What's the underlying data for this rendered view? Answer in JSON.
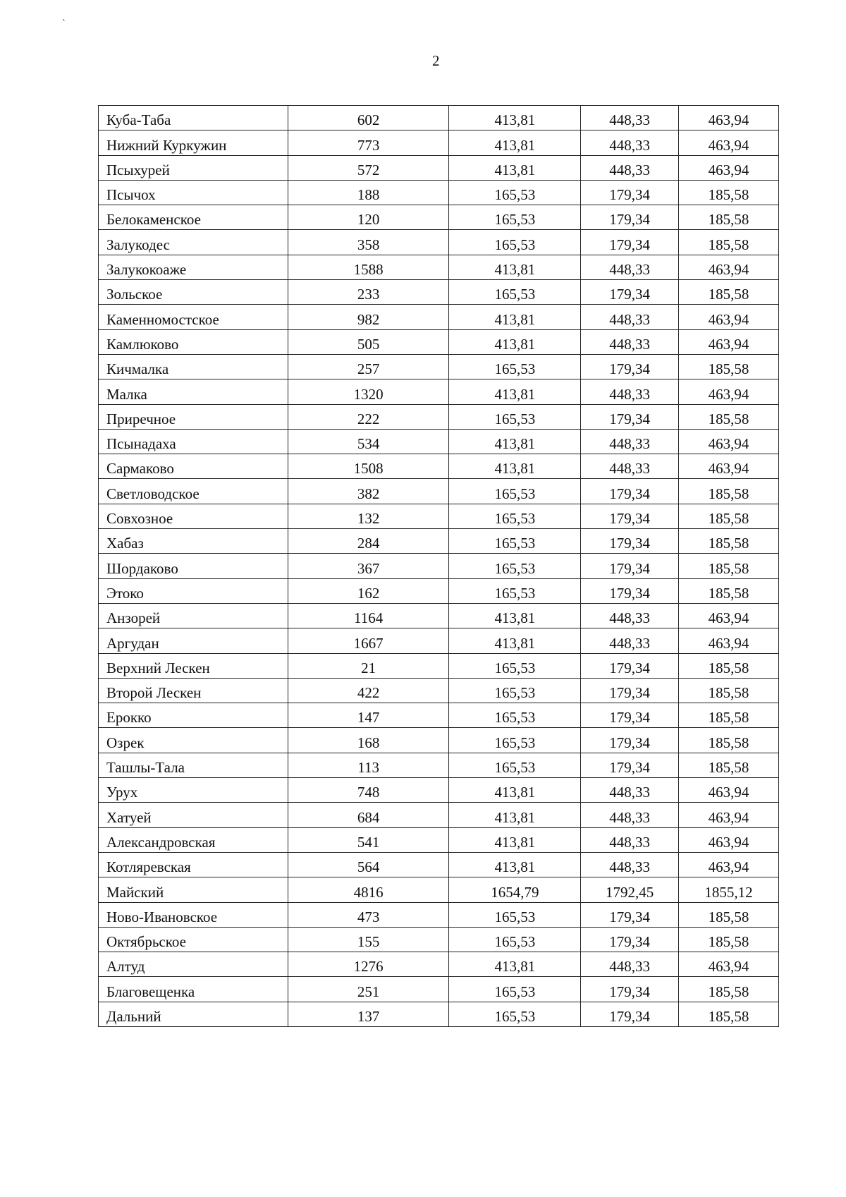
{
  "page_number": "2",
  "stray_mark": "`",
  "rows": [
    [
      "Куба-Таба",
      "602",
      "413,81",
      "448,33",
      "463,94"
    ],
    [
      "Нижний Куркужин",
      "773",
      "413,81",
      "448,33",
      "463,94"
    ],
    [
      "Псыхурей",
      "572",
      "413,81",
      "448,33",
      "463,94"
    ],
    [
      "Псычох",
      "188",
      "165,53",
      "179,34",
      "185,58"
    ],
    [
      "Белокаменское",
      "120",
      "165,53",
      "179,34",
      "185,58"
    ],
    [
      "Залукодес",
      "358",
      "165,53",
      "179,34",
      "185,58"
    ],
    [
      "Залукокоаже",
      "1588",
      "413,81",
      "448,33",
      "463,94"
    ],
    [
      "Зольское",
      "233",
      "165,53",
      "179,34",
      "185,58"
    ],
    [
      "Каменномостское",
      "982",
      "413,81",
      "448,33",
      "463,94"
    ],
    [
      "Камлюково",
      "505",
      "413,81",
      "448,33",
      "463,94"
    ],
    [
      "Кичмалка",
      "257",
      "165,53",
      "179,34",
      "185,58"
    ],
    [
      "Малка",
      "1320",
      "413,81",
      "448,33",
      "463,94"
    ],
    [
      "Приречное",
      "222",
      "165,53",
      "179,34",
      "185,58"
    ],
    [
      "Псынадаха",
      "534",
      "413,81",
      "448,33",
      "463,94"
    ],
    [
      "Сармаково",
      "1508",
      "413,81",
      "448,33",
      "463,94"
    ],
    [
      "Светловодское",
      "382",
      "165,53",
      "179,34",
      "185,58"
    ],
    [
      "Совхозное",
      "132",
      "165,53",
      "179,34",
      "185,58"
    ],
    [
      "Хабаз",
      "284",
      "165,53",
      "179,34",
      "185,58"
    ],
    [
      "Шордаково",
      "367",
      "165,53",
      "179,34",
      "185,58"
    ],
    [
      "Этоко",
      "162",
      "165,53",
      "179,34",
      "185,58"
    ],
    [
      "Анзорей",
      "1164",
      "413,81",
      "448,33",
      "463,94"
    ],
    [
      "Аргудан",
      "1667",
      "413,81",
      "448,33",
      "463,94"
    ],
    [
      "Верхний Лескен",
      "21",
      "165,53",
      "179,34",
      "185,58"
    ],
    [
      "Второй Лескен",
      "422",
      "165,53",
      "179,34",
      "185,58"
    ],
    [
      "Ерокко",
      "147",
      "165,53",
      "179,34",
      "185,58"
    ],
    [
      "Озрек",
      "168",
      "165,53",
      "179,34",
      "185,58"
    ],
    [
      "Ташлы-Тала",
      "113",
      "165,53",
      "179,34",
      "185,58"
    ],
    [
      "Урух",
      "748",
      "413,81",
      "448,33",
      "463,94"
    ],
    [
      "Хатуей",
      "684",
      "413,81",
      "448,33",
      "463,94"
    ],
    [
      "Александровская",
      "541",
      "413,81",
      "448,33",
      "463,94"
    ],
    [
      "Котляревская",
      "564",
      "413,81",
      "448,33",
      "463,94"
    ],
    [
      "Майский",
      "4816",
      "1654,79",
      "1792,45",
      "1855,12"
    ],
    [
      "Ново-Ивановское",
      "473",
      "165,53",
      "179,34",
      "185,58"
    ],
    [
      "Октябрьское",
      "155",
      "165,53",
      "179,34",
      "185,58"
    ],
    [
      "Алтуд",
      "1276",
      "413,81",
      "448,33",
      "463,94"
    ],
    [
      "Благовещенка",
      "251",
      "165,53",
      "179,34",
      "185,58"
    ],
    [
      "Дальний",
      "137",
      "165,53",
      "179,34",
      "185,58"
    ]
  ]
}
